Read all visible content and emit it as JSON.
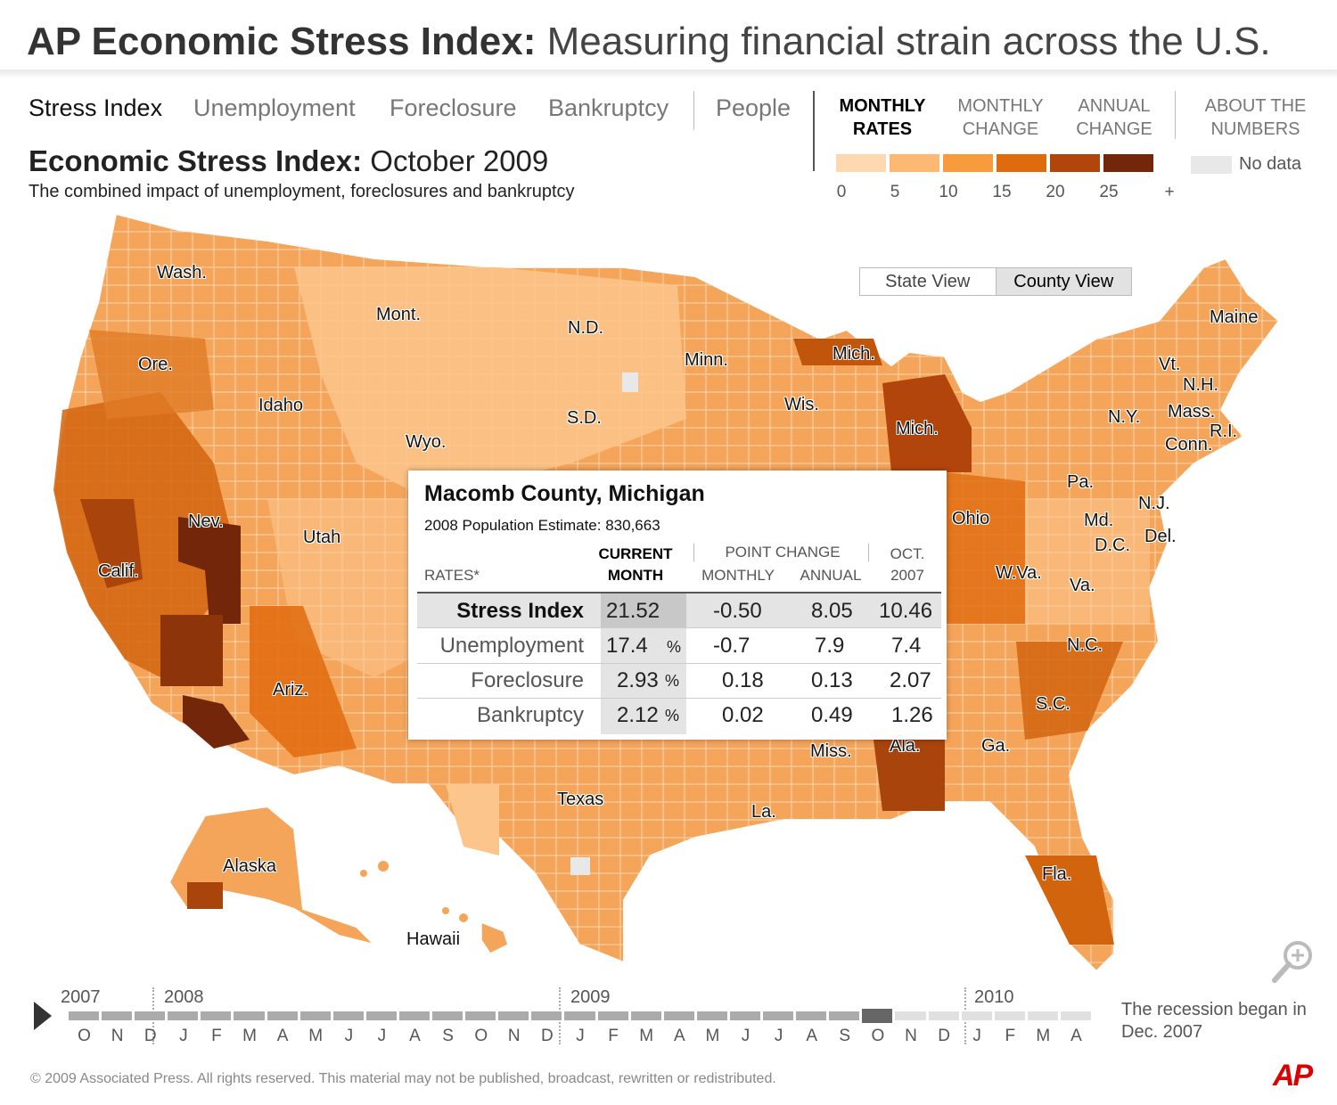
{
  "header": {
    "title_bold": "AP Economic Stress Index:",
    "title_rest": "Measuring financial strain across the U.S."
  },
  "nav_tabs": [
    {
      "label": "Stress Index",
      "active": true
    },
    {
      "label": "Unemployment",
      "active": false
    },
    {
      "label": "Foreclosure",
      "active": false
    },
    {
      "label": "Bankruptcy",
      "active": false
    },
    {
      "label": "People",
      "active": false
    }
  ],
  "rate_tabs": [
    {
      "line1": "MONTHLY",
      "line2": "RATES",
      "active": true
    },
    {
      "line1": "MONTHLY",
      "line2": "CHANGE",
      "active": false
    },
    {
      "line1": "ANNUAL",
      "line2": "CHANGE",
      "active": false
    },
    {
      "line1": "ABOUT THE",
      "line2": "NUMBERS",
      "active": false
    }
  ],
  "legend": {
    "colors": [
      "#fdd8b1",
      "#fdb873",
      "#f79b3d",
      "#e06a0e",
      "#b2450c",
      "#73260a"
    ],
    "ticks": [
      "0",
      "5",
      "10",
      "15",
      "20",
      "25",
      "+"
    ],
    "no_data_label": "No data",
    "no_data_color": "#e8e8e8"
  },
  "map_title": {
    "bold": "Economic Stress Index:",
    "period": "October 2009",
    "subtitle": "The combined impact of unemployment, foreclosures and bankruptcy"
  },
  "view_toggle": {
    "state_label": "State View",
    "county_label": "County View",
    "selected": "County View"
  },
  "state_labels": [
    "Wash.",
    "Ore.",
    "Idaho",
    "Mont.",
    "N.D.",
    "Minn.",
    "Mich.",
    "Wis.",
    "S.D.",
    "Wyo.",
    "Mich.",
    "Maine",
    "Vt.",
    "N.H.",
    "Mass.",
    "R.I.",
    "N.Y.",
    "Conn.",
    "Pa.",
    "N.J.",
    "Md.",
    "Del.",
    "D.C.",
    "Ohio",
    "W.Va.",
    "Va.",
    "N.C.",
    "S.C.",
    "Ga.",
    "Ala.",
    "Miss.",
    "La.",
    "Texas",
    "Fla.",
    "Nev.",
    "Utah",
    "Calif.",
    "Ariz.",
    "Alaska",
    "Hawaii"
  ],
  "popup": {
    "county": "Macomb County, Michigan",
    "population_label": "2008 Population Estimate:",
    "population": "830,663",
    "headers": {
      "rates": "RATES*",
      "current_1": "CURRENT",
      "current_2": "MONTH",
      "point_change": "POINT CHANGE",
      "monthly": "MONTHLY",
      "annual": "ANNUAL",
      "oct_1": "OCT.",
      "oct_2": "2007"
    },
    "rows": [
      {
        "label": "Stress Index",
        "current": "21.52",
        "unit": "",
        "monthly": "-0.50",
        "annual": "8.05",
        "oct2007": "10.46"
      },
      {
        "label": "Unemployment",
        "current": "17.4",
        "unit": "%",
        "monthly": "-0.7",
        "annual": "7.9",
        "oct2007": "7.4"
      },
      {
        "label": "Foreclosure",
        "current": "2.93",
        "unit": "%",
        "monthly": "0.18",
        "annual": "0.13",
        "oct2007": "2.07"
      },
      {
        "label": "Bankruptcy",
        "current": "2.12",
        "unit": "%",
        "monthly": "0.02",
        "annual": "0.49",
        "oct2007": "1.26"
      }
    ]
  },
  "timeline": {
    "years": [
      "2007",
      "2008",
      "2009",
      "2010"
    ],
    "months": [
      "O",
      "N",
      "D",
      "J",
      "F",
      "M",
      "A",
      "M",
      "J",
      "J",
      "A",
      "S",
      "O",
      "N",
      "D",
      "J",
      "F",
      "M",
      "A",
      "M",
      "J",
      "J",
      "A",
      "S",
      "O",
      "N",
      "D",
      "J",
      "F",
      "M",
      "A"
    ],
    "selected_month_index": 24,
    "available_through_index": 24,
    "note": "The recession began in Dec. 2007"
  },
  "footer": {
    "copyright": "©  2009 Associated Press. All rights reserved. This material may not be published, broadcast, rewritten or redistributed.",
    "logo": "AP"
  },
  "map_fill_colors": {
    "base": "#f5a55a",
    "light": "#fbc58c",
    "mid": "#ee8a33",
    "dark": "#d2640e",
    "darker": "#a8440c",
    "darkest": "#6e2408"
  }
}
